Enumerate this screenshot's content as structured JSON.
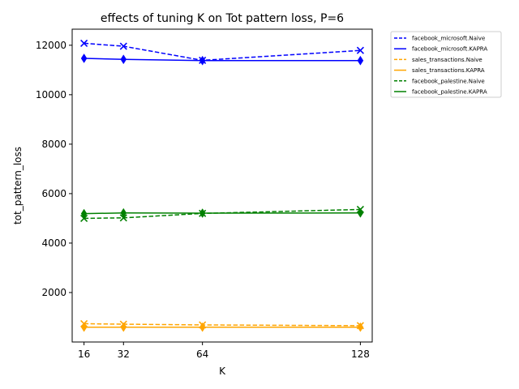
{
  "chart_data": {
    "type": "line",
    "title": "effects of tuning K on Tot pattern loss, P=6",
    "xlabel": "K",
    "ylabel": "tot_pattern_loss",
    "x": [
      16,
      32,
      64,
      128
    ],
    "x_ticks": [
      "16",
      "32",
      "64",
      "128"
    ],
    "y_ticks": [
      "2000",
      "4000",
      "6000",
      "8000",
      "10000",
      "12000"
    ],
    "xlim": [
      11.2,
      132.8
    ],
    "ylim": [
      0,
      12650
    ],
    "grid": false,
    "legend_position": "outside-right",
    "series": [
      {
        "name": "facebook_microsoft.Naive",
        "values": [
          12080,
          11960,
          11390,
          11790
        ],
        "color": "#0000ff",
        "dashed": true,
        "marker": "x"
      },
      {
        "name": "facebook_microsoft.KAPRA",
        "values": [
          11470,
          11430,
          11380,
          11380
        ],
        "color": "#0000ff",
        "dashed": false,
        "marker": "diamond"
      },
      {
        "name": "sales_transactions.Naive",
        "values": [
          740,
          720,
          690,
          660
        ],
        "color": "#ffa500",
        "dashed": true,
        "marker": "x"
      },
      {
        "name": "sales_transactions.KAPRA",
        "values": [
          600,
          600,
          600,
          600
        ],
        "color": "#ffa500",
        "dashed": false,
        "marker": "diamond"
      },
      {
        "name": "facebook_palestine.Naive",
        "values": [
          5000,
          5020,
          5200,
          5360
        ],
        "color": "#008000",
        "dashed": true,
        "marker": "x"
      },
      {
        "name": "facebook_palestine.KAPRA",
        "values": [
          5190,
          5220,
          5210,
          5220
        ],
        "color": "#008000",
        "dashed": false,
        "marker": "diamond"
      }
    ]
  }
}
